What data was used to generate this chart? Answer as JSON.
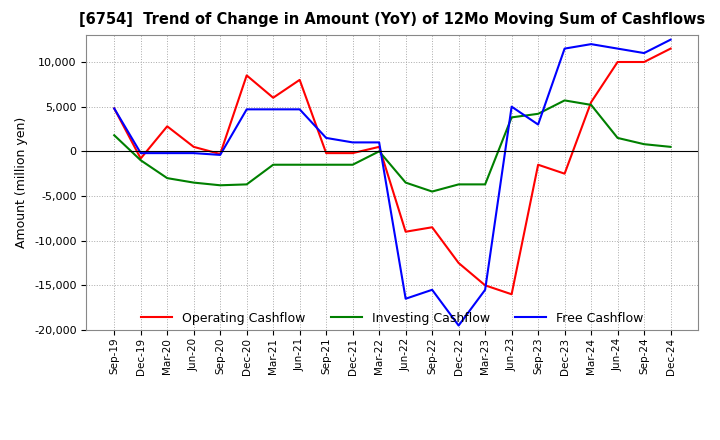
{
  "title": "[6754]  Trend of Change in Amount (YoY) of 12Mo Moving Sum of Cashflows",
  "ylabel": "Amount (million yen)",
  "ylim": [
    -20000,
    13000
  ],
  "yticks": [
    -20000,
    -15000,
    -10000,
    -5000,
    0,
    5000,
    10000
  ],
  "legend_labels": [
    "Operating Cashflow",
    "Investing Cashflow",
    "Free Cashflow"
  ],
  "colors": [
    "#ff0000",
    "#008000",
    "#0000ff"
  ],
  "x_labels": [
    "Sep-19",
    "Dec-19",
    "Mar-20",
    "Jun-20",
    "Sep-20",
    "Dec-20",
    "Mar-21",
    "Jun-21",
    "Sep-21",
    "Dec-21",
    "Mar-22",
    "Jun-22",
    "Sep-22",
    "Dec-22",
    "Mar-23",
    "Jun-23",
    "Sep-23",
    "Dec-23",
    "Mar-24",
    "Jun-24",
    "Sep-24",
    "Dec-24"
  ],
  "operating": [
    4800,
    -800,
    2800,
    500,
    -300,
    8500,
    6000,
    8000,
    -200,
    -200,
    500,
    -9000,
    -8500,
    -12500,
    -15000,
    -16000,
    -1500,
    -2500,
    5500,
    10000,
    10000,
    11500
  ],
  "investing": [
    1800,
    -1000,
    -3000,
    -3500,
    -3800,
    -3700,
    -1500,
    -1500,
    -1500,
    -1500,
    0,
    -3500,
    -4500,
    -3700,
    -3700,
    3800,
    4200,
    5700,
    5200,
    1500,
    800,
    500
  ],
  "free": [
    4800,
    -200,
    -200,
    -200,
    -400,
    4700,
    4700,
    4700,
    1500,
    1000,
    1000,
    -16500,
    -15500,
    -19500,
    -15500,
    5000,
    3000,
    11500,
    12000,
    11500,
    11000,
    12500
  ],
  "background_color": "#ffffff",
  "grid_color": "#aaaaaa"
}
